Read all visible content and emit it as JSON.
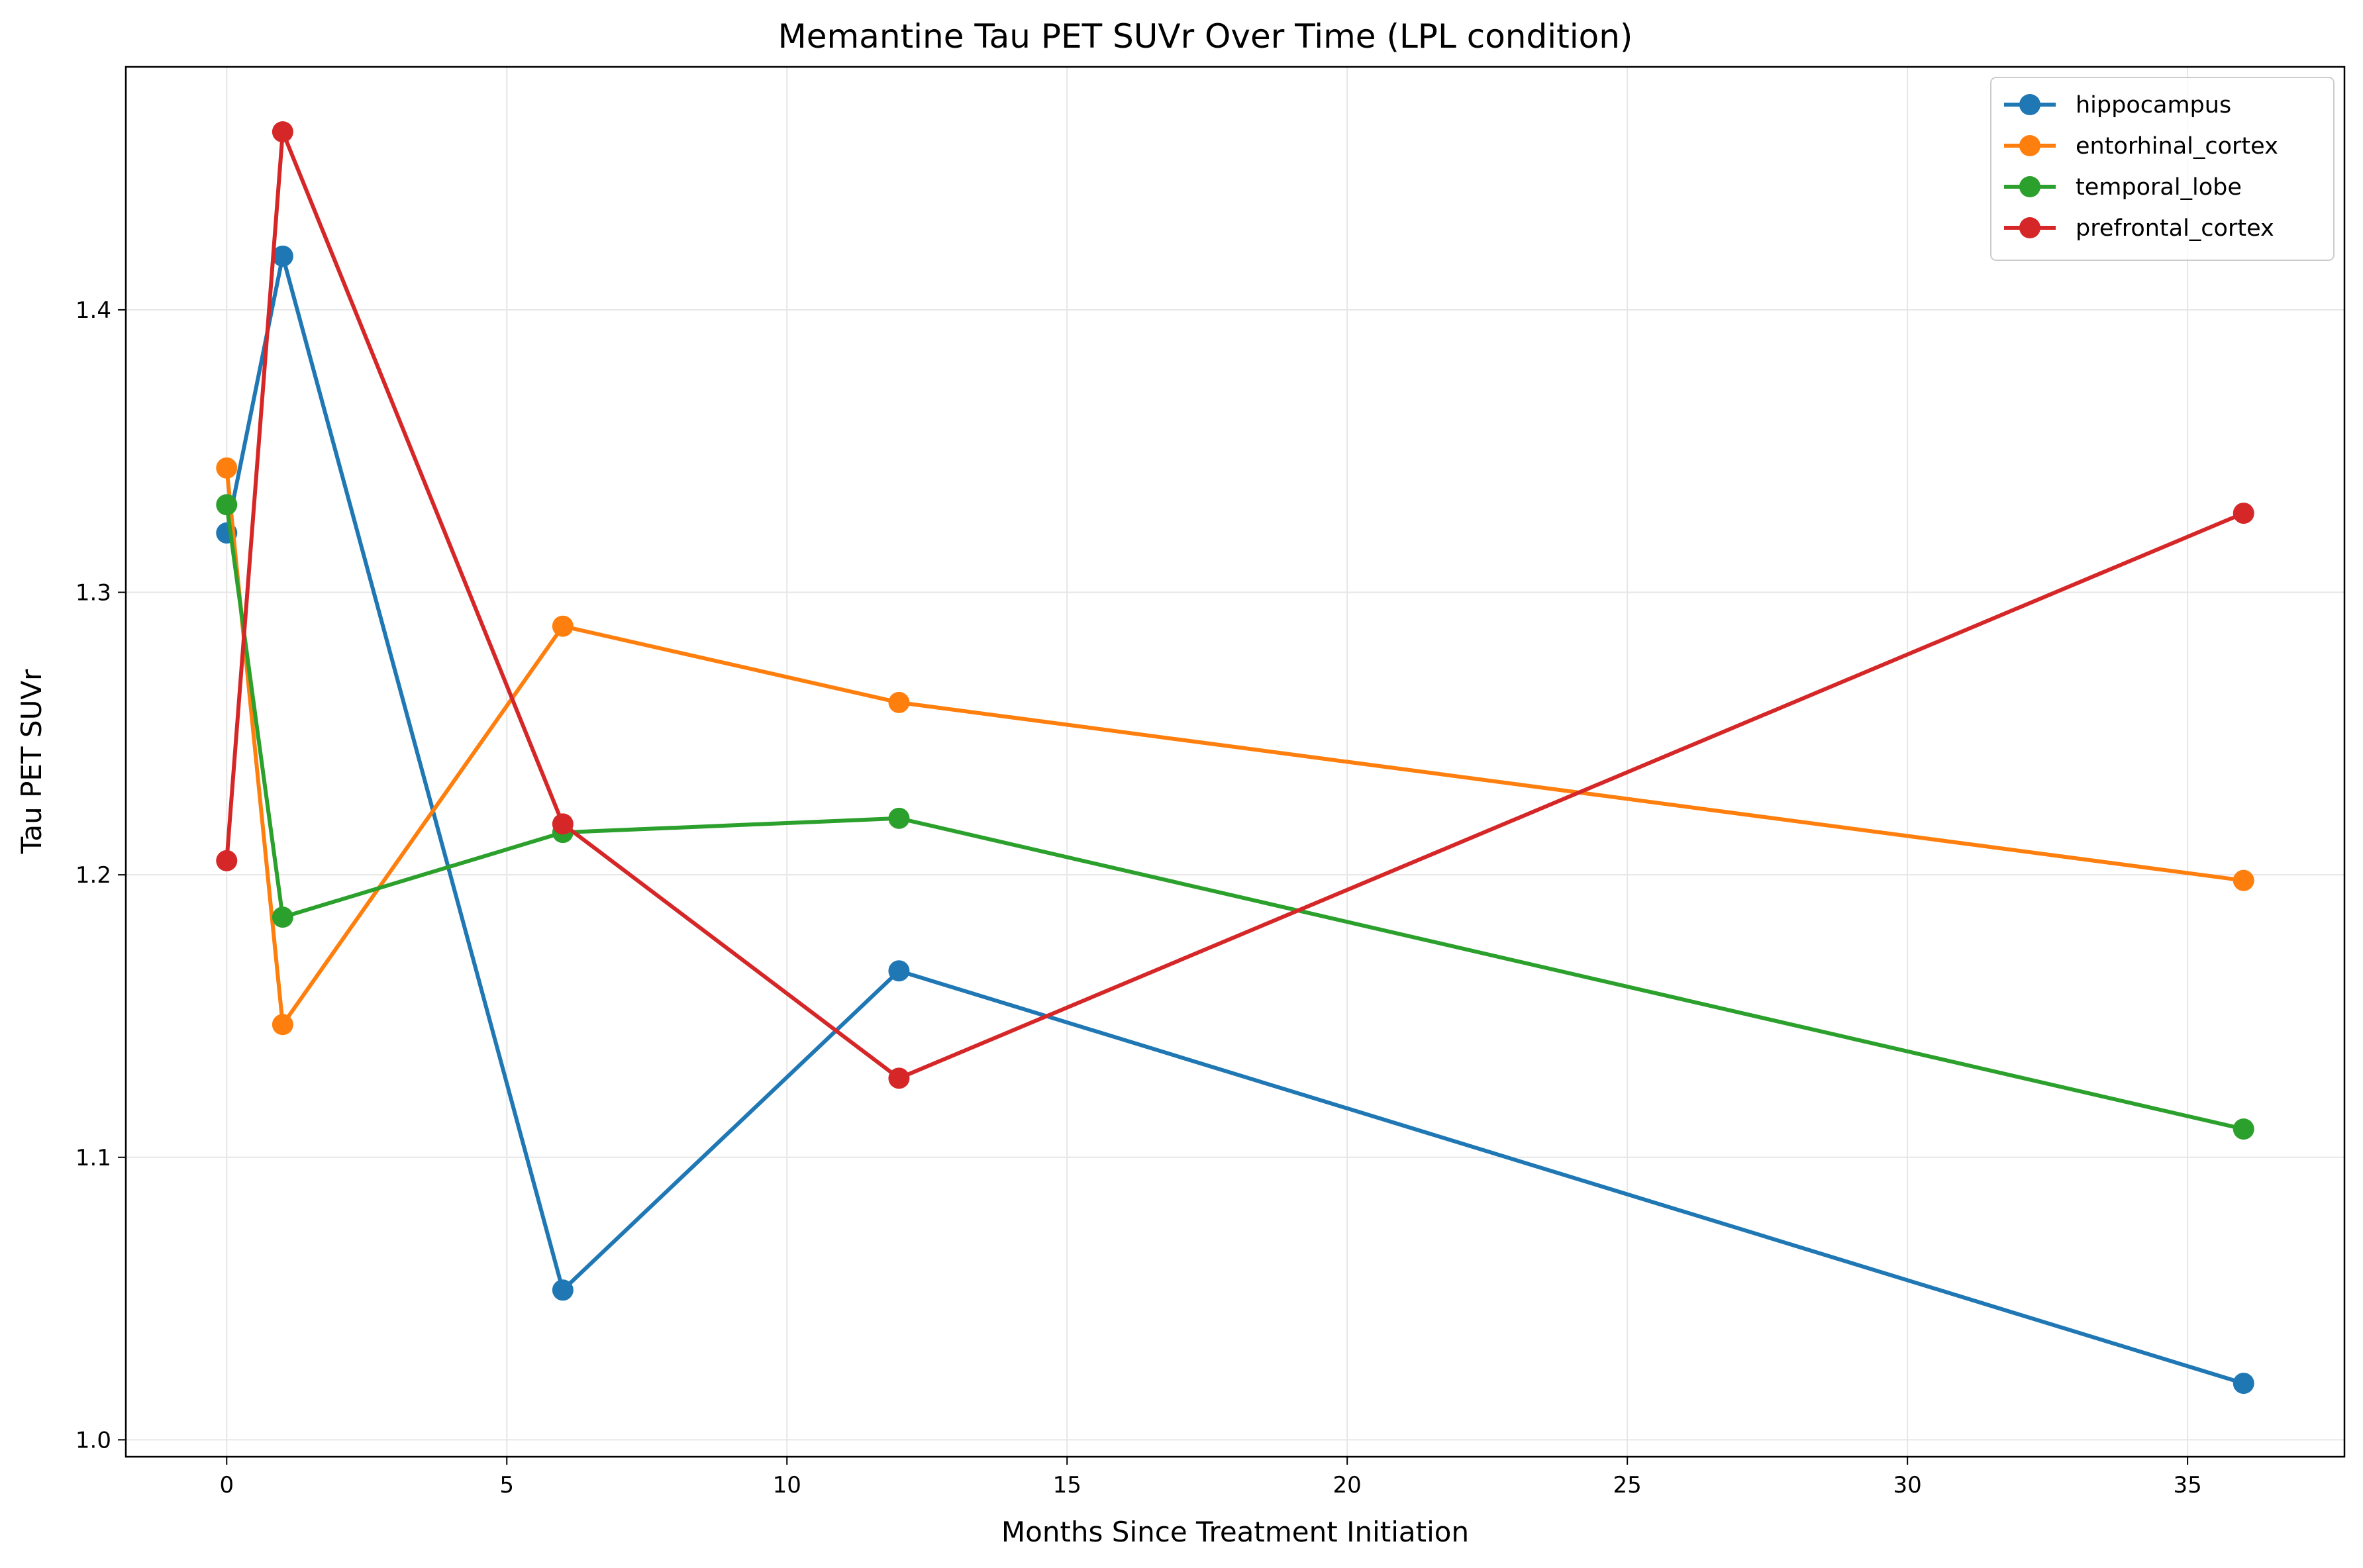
{
  "chart_data": {
    "type": "line",
    "title": "Memantine Tau PET SUVr Over Time (LPL condition)",
    "xlabel": "Months Since Treatment Initiation",
    "ylabel": "Tau PET SUVr",
    "xlim": [
      -1.8,
      37.8
    ],
    "ylim": [
      0.994,
      1.486
    ],
    "xticks": [
      0,
      5,
      10,
      15,
      20,
      25,
      30,
      35
    ],
    "yticks": [
      1.0,
      1.1,
      1.2,
      1.3,
      1.4
    ],
    "ytick_labels": [
      "1.0",
      "1.1",
      "1.2",
      "1.3",
      "1.4"
    ],
    "grid": true,
    "legend_position": "top-right",
    "x": [
      0,
      1,
      6,
      12,
      36
    ],
    "series": [
      {
        "name": "hippocampus",
        "color": "#1f77b4",
        "values": [
          1.321,
          1.419,
          1.053,
          1.166,
          1.02
        ]
      },
      {
        "name": "entorhinal_cortex",
        "color": "#ff7f0e",
        "values": [
          1.344,
          1.147,
          1.288,
          1.261,
          1.198
        ]
      },
      {
        "name": "temporal_lobe",
        "color": "#2ca02c",
        "values": [
          1.331,
          1.185,
          1.215,
          1.22,
          1.11
        ]
      },
      {
        "name": "prefrontal_cortex",
        "color": "#d62728",
        "values": [
          1.205,
          1.463,
          1.218,
          1.128,
          1.328
        ]
      }
    ]
  }
}
